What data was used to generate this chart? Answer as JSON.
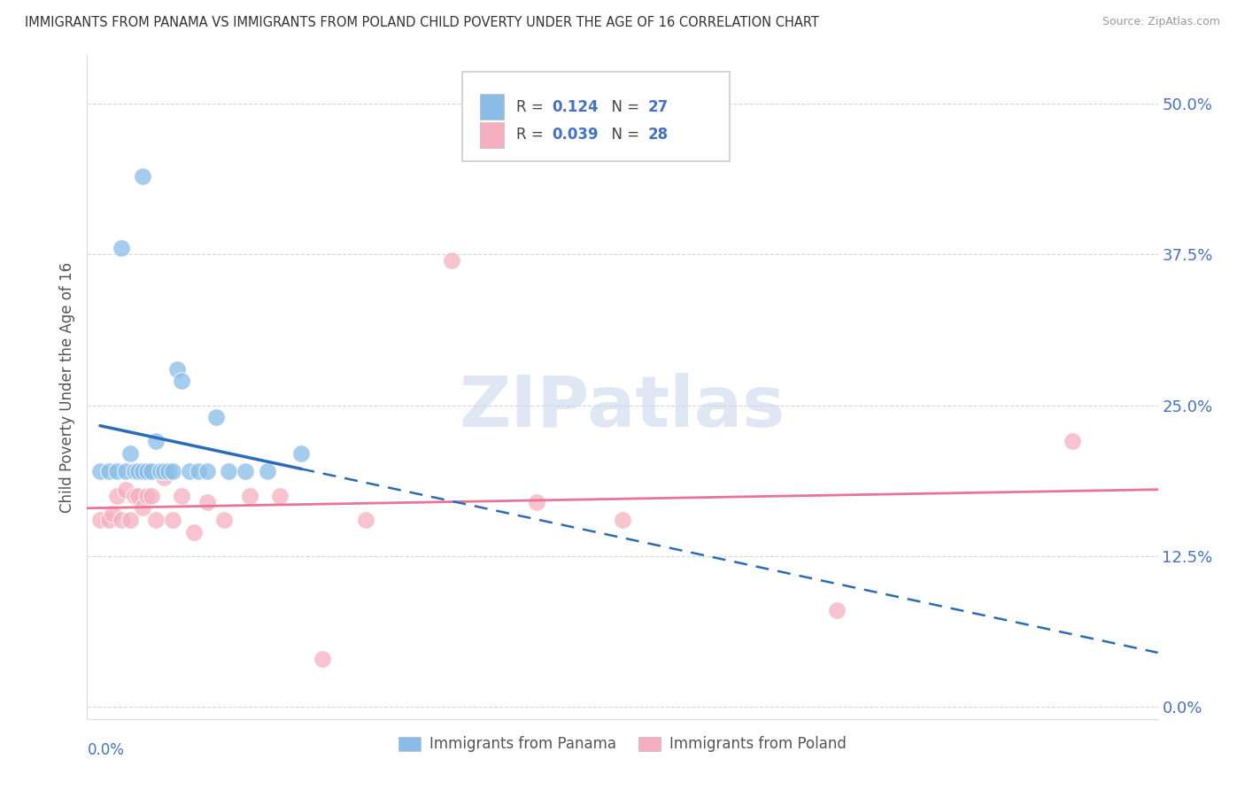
{
  "title": "IMMIGRANTS FROM PANAMA VS IMMIGRANTS FROM POLAND CHILD POVERTY UNDER THE AGE OF 16 CORRELATION CHART",
  "source": "Source: ZipAtlas.com",
  "ylabel": "Child Poverty Under the Age of 16",
  "ytick_values": [
    0.0,
    0.125,
    0.25,
    0.375,
    0.5
  ],
  "xlim": [
    0.0,
    0.25
  ],
  "ylim": [
    -0.01,
    0.54
  ],
  "legend_panama": "Immigrants from Panama",
  "legend_poland": "Immigrants from Poland",
  "R_panama": "0.124",
  "N_panama": "27",
  "R_poland": "0.039",
  "N_poland": "28",
  "color_panama": "#89bde8",
  "color_poland": "#f5afc0",
  "line_color_panama": "#2b6cb8",
  "line_color_poland": "#e8749a",
  "watermark": "ZIPatlas",
  "panama_x": [
    0.003,
    0.006,
    0.008,
    0.009,
    0.01,
    0.011,
    0.012,
    0.013,
    0.013,
    0.014,
    0.015,
    0.016,
    0.017,
    0.018,
    0.019,
    0.02,
    0.021,
    0.022,
    0.025,
    0.027,
    0.028,
    0.03,
    0.032,
    0.035,
    0.038,
    0.042,
    0.05
  ],
  "panama_y": [
    0.19,
    0.195,
    0.38,
    0.195,
    0.21,
    0.195,
    0.195,
    0.44,
    0.195,
    0.195,
    0.195,
    0.195,
    0.195,
    0.195,
    0.195,
    0.195,
    0.28,
    0.195,
    0.195,
    0.195,
    0.195,
    0.24,
    0.195,
    0.195,
    0.195,
    0.195,
    0.21
  ],
  "poland_x": [
    0.003,
    0.005,
    0.006,
    0.007,
    0.008,
    0.009,
    0.01,
    0.011,
    0.012,
    0.013,
    0.014,
    0.015,
    0.016,
    0.018,
    0.02,
    0.022,
    0.025,
    0.028,
    0.032,
    0.038,
    0.045,
    0.055,
    0.065,
    0.08,
    0.105,
    0.125,
    0.175,
    0.23
  ],
  "poland_y": [
    0.16,
    0.155,
    0.16,
    0.175,
    0.16,
    0.18,
    0.155,
    0.175,
    0.175,
    0.165,
    0.175,
    0.175,
    0.155,
    0.19,
    0.155,
    0.175,
    0.145,
    0.17,
    0.155,
    0.175,
    0.175,
    0.04,
    0.155,
    0.175,
    0.17,
    0.155,
    0.08,
    0.22
  ]
}
